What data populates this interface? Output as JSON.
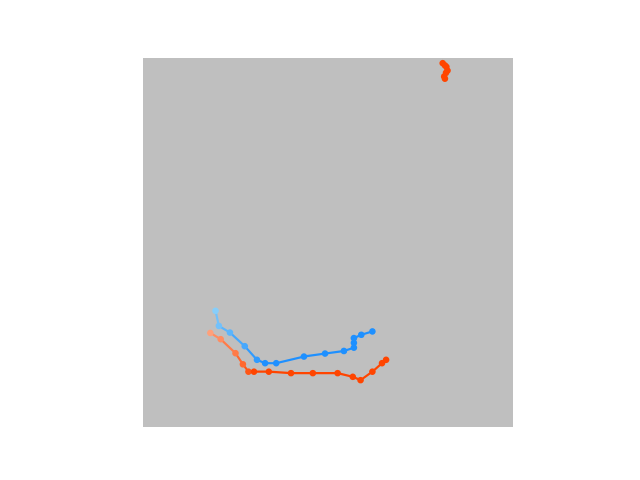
{
  "scene": {
    "background_color": "#ffffff",
    "board_color": "#bfbfbf"
  },
  "chart_data": {
    "type": "line",
    "title": "",
    "xlabel": "",
    "ylabel": "",
    "xlim": [
      0,
      100
    ],
    "ylim": [
      0,
      100
    ],
    "grid": false,
    "legend": "none",
    "series": [
      {
        "color": "#1e90ff",
        "fade_color": "#87cefa",
        "points": [
          [
            19.6,
            31.5
          ],
          [
            20.5,
            27.4
          ],
          [
            23.5,
            25.6
          ],
          [
            27.5,
            21.9
          ],
          [
            30.8,
            18.2
          ],
          [
            33.0,
            17.3
          ],
          [
            36.0,
            17.3
          ],
          [
            43.5,
            19.1
          ],
          [
            49.2,
            19.9
          ],
          [
            54.3,
            20.6
          ],
          [
            57.0,
            21.5
          ],
          [
            57.0,
            22.8
          ],
          [
            57.0,
            24.1
          ],
          [
            59.0,
            25.0
          ],
          [
            62.0,
            25.9
          ]
        ]
      },
      {
        "color": "#ff4500",
        "fade_color": "#ffa07a",
        "points": [
          [
            18.2,
            25.5
          ],
          [
            21.0,
            23.8
          ],
          [
            25.0,
            20.0
          ],
          [
            27.0,
            17.0
          ],
          [
            28.5,
            15.0
          ],
          [
            30.0,
            15.0
          ],
          [
            34.0,
            15.0
          ],
          [
            40.0,
            14.6
          ],
          [
            45.9,
            14.6
          ],
          [
            52.6,
            14.6
          ],
          [
            56.7,
            13.6
          ],
          [
            58.8,
            12.7
          ],
          [
            62.0,
            15.0
          ],
          [
            64.6,
            17.3
          ],
          [
            65.7,
            18.2
          ]
        ]
      },
      {
        "color": "#ff4500",
        "fade_color": "#ff4500",
        "points": [
          [
            81.0,
            98.6
          ],
          [
            81.6,
            98.0
          ],
          [
            82.0,
            97.6
          ],
          [
            82.3,
            96.6
          ],
          [
            81.9,
            96.0
          ],
          [
            81.4,
            95.0
          ],
          [
            81.6,
            94.4
          ]
        ]
      }
    ]
  }
}
